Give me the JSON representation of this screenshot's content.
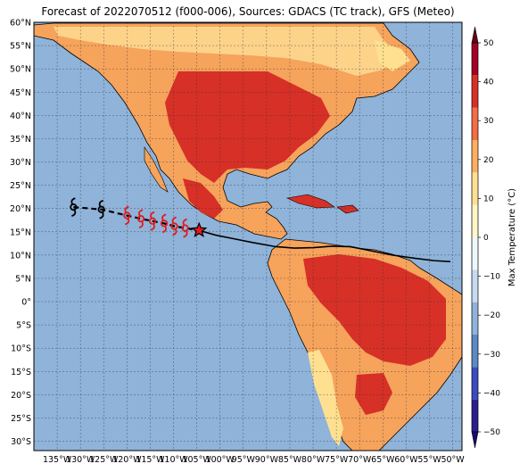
{
  "title": "Forecast of 2022070512 (f000-006), Sources: GDACS (TC track), GFS (Meteo)",
  "map": {
    "lon_range": [
      -140,
      -48
    ],
    "lat_range": [
      -32,
      60
    ],
    "lat_ticks": [
      "60°N",
      "55°N",
      "50°N",
      "45°N",
      "40°N",
      "35°N",
      "30°N",
      "25°N",
      "20°N",
      "15°N",
      "10°N",
      "5°N",
      "0°",
      "5°S",
      "10°S",
      "15°S",
      "20°S",
      "25°S",
      "30°S"
    ],
    "lon_ticks": [
      "135°W",
      "130°W",
      "125°W",
      "120°W",
      "115°W",
      "110°W",
      "105°W",
      "100°W",
      "95°W",
      "90°W",
      "85°W",
      "80°W",
      "75°W",
      "70°W",
      "65°W",
      "60°W",
      "55°W",
      "50°W"
    ],
    "colors": {
      "ocean": "#8fb3d9",
      "land_warm": "#f6a35c",
      "land_hot": "#d73027",
      "land_mild": "#fee090",
      "land_light": "#fdd38a"
    }
  },
  "track": {
    "forecast_positions": [
      {
        "lon": -131.5,
        "lat": 20.3
      },
      {
        "lon": -125.5,
        "lat": 19.8
      },
      {
        "lon": -120,
        "lat": 18.5
      },
      {
        "lon": -117,
        "lat": 17.8
      },
      {
        "lon": -114.5,
        "lat": 17.3
      },
      {
        "lon": -112,
        "lat": 16.8
      },
      {
        "lon": -109.8,
        "lat": 16.2
      },
      {
        "lon": -107.5,
        "lat": 15.8
      }
    ],
    "current_position": {
      "lon": -104.5,
      "lat": 15.3
    },
    "past_track": [
      [
        -104.5,
        15.3
      ],
      [
        -101,
        14.3
      ],
      [
        -97,
        13.5
      ],
      [
        -93,
        12.7
      ],
      [
        -88,
        11.8
      ],
      [
        -84,
        11.5
      ],
      [
        -80,
        11.6
      ],
      [
        -76,
        11.9
      ],
      [
        -72,
        11.8
      ],
      [
        -68,
        11.0
      ],
      [
        -63,
        10.0
      ],
      [
        -58,
        9.3
      ],
      [
        -54,
        8.8
      ],
      [
        -50.5,
        8.6
      ]
    ]
  },
  "colorbar": {
    "label": "Max Temperature (°C)",
    "ticks": [
      "50",
      "40",
      "30",
      "20",
      "10",
      "0",
      "−10",
      "−20",
      "−30",
      "−40",
      "−50"
    ],
    "range": [
      -50,
      50
    ],
    "colors": [
      "#2b1f8f",
      "#3b4cc0",
      "#5b8ac4",
      "#8fb3d9",
      "#c6dbef",
      "#eef7fb",
      "#fff7c6",
      "#fee090",
      "#fdae61",
      "#f46d43",
      "#d73027",
      "#a50026"
    ]
  }
}
